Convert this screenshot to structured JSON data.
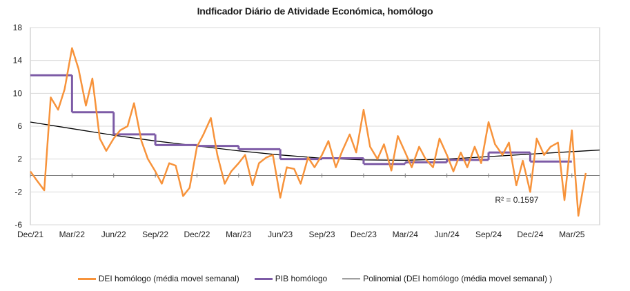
{
  "chart_data": {
    "type": "line",
    "title": "Indficador Diário de Atividade Económica, homólogo",
    "xlabel": "",
    "ylabel": "",
    "x_tick_labels": [
      "Dec/21",
      "Mar/22",
      "Jun/22",
      "Sep/22",
      "Dec/22",
      "Mar/23",
      "Jun/23",
      "Sep/23",
      "Dec/23",
      "Mar/24",
      "Jun/24",
      "Sep/24",
      "Dec/24",
      "Mar/25"
    ],
    "x_tick_dates": [
      "2021-12",
      "2022-03",
      "2022-06",
      "2022-09",
      "2022-12",
      "2023-03",
      "2023-06",
      "2023-09",
      "2023-12",
      "2024-03",
      "2024-06",
      "2024-09",
      "2024-12",
      "2025-03"
    ],
    "x_range": [
      "2021-12",
      "2025-05"
    ],
    "ylim": [
      -6,
      18
    ],
    "y_ticks": [
      "18",
      "14",
      "10",
      "6",
      "2",
      "-2",
      "-6"
    ],
    "y_tick_values": [
      18,
      14,
      10,
      6,
      2,
      -2,
      -6
    ],
    "grid": true,
    "legend_position": "bottom",
    "annotation": "R² = 0.1597",
    "series": [
      {
        "name": "DEI homólogo (média movel semanal)",
        "color": "#F7933B",
        "style": "line",
        "points": [
          [
            "2021-12",
            0.5
          ],
          [
            "2021-12-15",
            -0.6
          ],
          [
            "2022-01",
            -1.8
          ],
          [
            "2022-01-15",
            9.5
          ],
          [
            "2022-02",
            8.0
          ],
          [
            "2022-02-15",
            10.5
          ],
          [
            "2022-03",
            15.5
          ],
          [
            "2022-03-15",
            13.0
          ],
          [
            "2022-04",
            8.5
          ],
          [
            "2022-04-15",
            11.8
          ],
          [
            "2022-05",
            4.5
          ],
          [
            "2022-05-15",
            3.0
          ],
          [
            "2022-06",
            4.5
          ],
          [
            "2022-06-15",
            5.5
          ],
          [
            "2022-07",
            6.0
          ],
          [
            "2022-07-15",
            8.8
          ],
          [
            "2022-08",
            4.2
          ],
          [
            "2022-08-15",
            2.0
          ],
          [
            "2022-09",
            0.5
          ],
          [
            "2022-09-15",
            -1.0
          ],
          [
            "2022-10",
            1.5
          ],
          [
            "2022-10-15",
            1.2
          ],
          [
            "2022-11",
            -2.5
          ],
          [
            "2022-11-15",
            -1.5
          ],
          [
            "2022-12",
            3.5
          ],
          [
            "2022-12-15",
            5.0
          ],
          [
            "2023-01",
            7.0
          ],
          [
            "2023-01-15",
            2.5
          ],
          [
            "2023-02",
            -1.0
          ],
          [
            "2023-02-15",
            0.5
          ],
          [
            "2023-03",
            1.5
          ],
          [
            "2023-03-15",
            2.5
          ],
          [
            "2023-04",
            -1.2
          ],
          [
            "2023-04-15",
            1.5
          ],
          [
            "2023-05",
            2.2
          ],
          [
            "2023-05-15",
            2.5
          ],
          [
            "2023-06",
            -2.7
          ],
          [
            "2023-06-15",
            1.0
          ],
          [
            "2023-07",
            0.8
          ],
          [
            "2023-07-15",
            -1.0
          ],
          [
            "2023-08",
            2.2
          ],
          [
            "2023-08-15",
            1.0
          ],
          [
            "2023-09",
            2.5
          ],
          [
            "2023-09-15",
            4.2
          ],
          [
            "2023-10",
            1.0
          ],
          [
            "2023-10-15",
            3.0
          ],
          [
            "2023-11",
            5.0
          ],
          [
            "2023-11-15",
            2.8
          ],
          [
            "2023-12",
            8.0
          ],
          [
            "2023-12-15",
            3.5
          ],
          [
            "2024-01",
            2.0
          ],
          [
            "2024-01-15",
            3.8
          ],
          [
            "2024-02",
            0.6
          ],
          [
            "2024-02-15",
            4.8
          ],
          [
            "2024-03",
            2.8
          ],
          [
            "2024-03-15",
            1.0
          ],
          [
            "2024-04",
            3.5
          ],
          [
            "2024-04-15",
            2.0
          ],
          [
            "2024-05",
            1.0
          ],
          [
            "2024-05-15",
            4.5
          ],
          [
            "2024-06",
            2.5
          ],
          [
            "2024-06-15",
            0.5
          ],
          [
            "2024-07",
            2.8
          ],
          [
            "2024-07-15",
            1.0
          ],
          [
            "2024-08",
            3.5
          ],
          [
            "2024-08-15",
            1.5
          ],
          [
            "2024-09",
            6.5
          ],
          [
            "2024-09-15",
            3.8
          ],
          [
            "2024-10",
            2.5
          ],
          [
            "2024-10-15",
            4.0
          ],
          [
            "2024-11",
            -1.2
          ],
          [
            "2024-11-15",
            1.8
          ],
          [
            "2024-12",
            -2.0
          ],
          [
            "2024-12-15",
            4.5
          ],
          [
            "2025-01",
            2.5
          ],
          [
            "2025-01-15",
            3.5
          ],
          [
            "2025-02",
            4.0
          ],
          [
            "2025-02-15",
            -3.0
          ],
          [
            "2025-03",
            5.5
          ],
          [
            "2025-03-15",
            -4.9
          ],
          [
            "2025-04",
            0.3
          ]
        ]
      },
      {
        "name": "PIB homólogo",
        "color": "#7D5BA6",
        "style": "step",
        "steps": [
          {
            "from": "2021-12",
            "to": "2022-03",
            "value": 12.2
          },
          {
            "from": "2022-03",
            "to": "2022-06",
            "value": 7.7
          },
          {
            "from": "2022-06",
            "to": "2022-09",
            "value": 5.0
          },
          {
            "from": "2022-09",
            "to": "2022-12",
            "value": 3.7
          },
          {
            "from": "2022-12",
            "to": "2023-03",
            "value": 3.6
          },
          {
            "from": "2023-03",
            "to": "2023-06",
            "value": 3.2
          },
          {
            "from": "2023-06",
            "to": "2023-09",
            "value": 2.0
          },
          {
            "from": "2023-09",
            "to": "2023-12",
            "value": 2.1
          },
          {
            "from": "2023-12",
            "to": "2024-03",
            "value": 1.4
          },
          {
            "from": "2024-03",
            "to": "2024-06",
            "value": 1.6
          },
          {
            "from": "2024-06",
            "to": "2024-09",
            "value": 1.9
          },
          {
            "from": "2024-09",
            "to": "2024-12",
            "value": 2.8
          },
          {
            "from": "2024-12",
            "to": "2025-03",
            "value": 1.7
          }
        ]
      },
      {
        "name": "Polinomial (DEI homólogo (média movel semanal) )",
        "color": "#000000",
        "style": "smooth",
        "points": [
          [
            "2021-12",
            6.5
          ],
          [
            "2022-03",
            5.7
          ],
          [
            "2022-06",
            4.9
          ],
          [
            "2022-09",
            4.2
          ],
          [
            "2022-12",
            3.6
          ],
          [
            "2023-03",
            3.0
          ],
          [
            "2023-06",
            2.5
          ],
          [
            "2023-09",
            2.1
          ],
          [
            "2023-12",
            1.9
          ],
          [
            "2024-03",
            1.85
          ],
          [
            "2024-06",
            2.0
          ],
          [
            "2024-09",
            2.3
          ],
          [
            "2024-12",
            2.6
          ],
          [
            "2025-03",
            2.9
          ],
          [
            "2025-05",
            3.1
          ]
        ]
      }
    ]
  }
}
